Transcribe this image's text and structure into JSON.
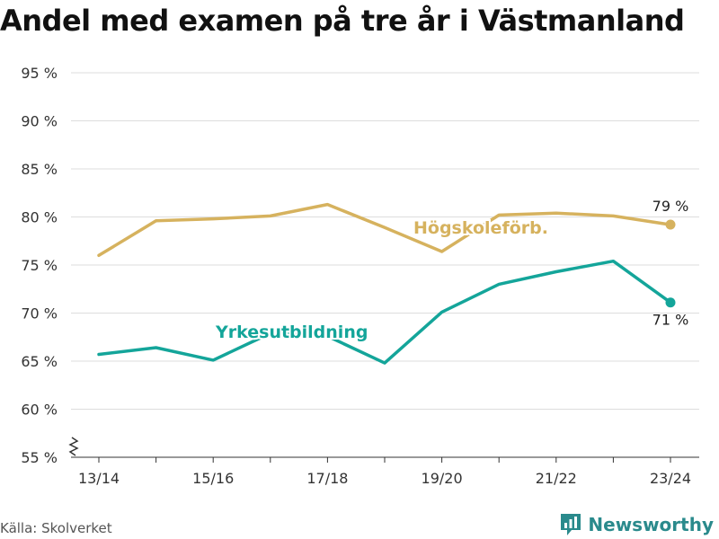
{
  "title": "Andel med examen på tre år i Västmanland",
  "source": "Källa: Skolverket",
  "brand": {
    "name": "Newsworthy",
    "icon": "bar-chart-icon"
  },
  "colors": {
    "hogskole": "#d6b25e",
    "yrkes": "#14a59a",
    "grid": "#dddddd",
    "brand": "#2a8a8c"
  },
  "chart_data": {
    "type": "line",
    "title": "Andel med examen på tre år i Västmanland",
    "xlabel": "",
    "ylabel": "",
    "x": [
      "13/14",
      "14/15",
      "15/16",
      "16/17",
      "17/18",
      "18/19",
      "19/20",
      "20/21",
      "21/22",
      "22/23",
      "23/24"
    ],
    "x_tick_labels": [
      "13/14",
      "15/16",
      "17/18",
      "19/20",
      "21/22",
      "23/24"
    ],
    "y_ticks": [
      55,
      60,
      65,
      70,
      75,
      80,
      85,
      90,
      95
    ],
    "y_tick_labels": [
      "55 %",
      "60 %",
      "65 %",
      "70 %",
      "75 %",
      "80 %",
      "85 %",
      "90 %",
      "95 %"
    ],
    "ylim": [
      55,
      95
    ],
    "axis_break": true,
    "grid": true,
    "series": [
      {
        "name": "Högskoleförb.",
        "color": "#d6b25e",
        "values": [
          76.0,
          79.6,
          79.8,
          80.1,
          81.3,
          78.9,
          76.4,
          80.2,
          80.4,
          80.1,
          79.2
        ],
        "end_label": "79 %"
      },
      {
        "name": "Yrkesutbildning",
        "color": "#14a59a",
        "values": [
          65.7,
          66.4,
          65.1,
          67.9,
          67.6,
          64.8,
          70.1,
          73.0,
          74.3,
          75.4,
          71.1
        ],
        "end_label": "71 %"
      }
    ]
  }
}
